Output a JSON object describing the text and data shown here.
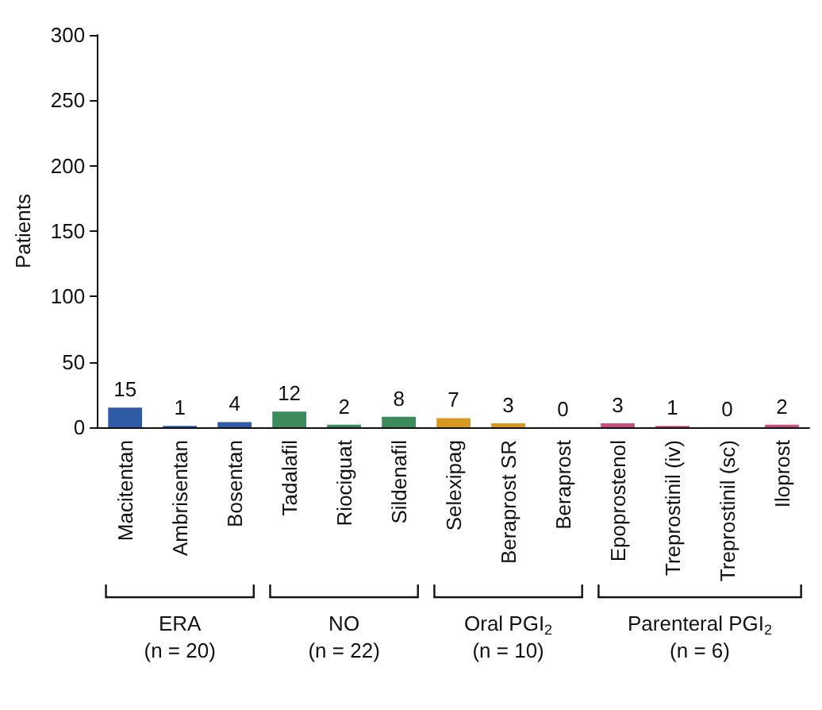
{
  "chart_data": {
    "type": "bar",
    "ylabel": "Patients",
    "categories": [
      "Macitentan",
      "Ambrisentan",
      "Bosentan",
      "Tadalafil",
      "Riociguat",
      "Sildenafil",
      "Selexipag",
      "Beraprost SR",
      "Beraprost",
      "Epoprostenol",
      "Treprostinil (iv)",
      "Treprostinil (sc)",
      "Iloprost"
    ],
    "series": [
      {
        "color": "#2f5aa6",
        "values": [
          15,
          1,
          4,
          null,
          null,
          null,
          null,
          null,
          null,
          null,
          null,
          null,
          null
        ]
      },
      {
        "color": "#3d8b5c",
        "values": [
          null,
          null,
          null,
          12,
          2,
          8,
          null,
          null,
          null,
          null,
          null,
          null,
          null
        ]
      },
      {
        "color": "#d69a22",
        "values": [
          null,
          null,
          null,
          null,
          null,
          null,
          7,
          3,
          0,
          null,
          null,
          null,
          null
        ]
      },
      {
        "color": "#c8507e",
        "values": [
          null,
          null,
          null,
          null,
          null,
          null,
          null,
          null,
          null,
          3,
          1,
          0,
          2
        ]
      }
    ],
    "ylim": [
      0,
      300
    ],
    "yticks": [
      0,
      50,
      100,
      150,
      200,
      250,
      300
    ],
    "data_labels": true,
    "grid": false,
    "annotations": [
      "ERA\n(n = 20)",
      "NO\n(n = 22)",
      "Oral PGI$_{2}$\n(n = 10)",
      "Parenteral PGI$_{2}$\n(n = 6)"
    ]
  }
}
